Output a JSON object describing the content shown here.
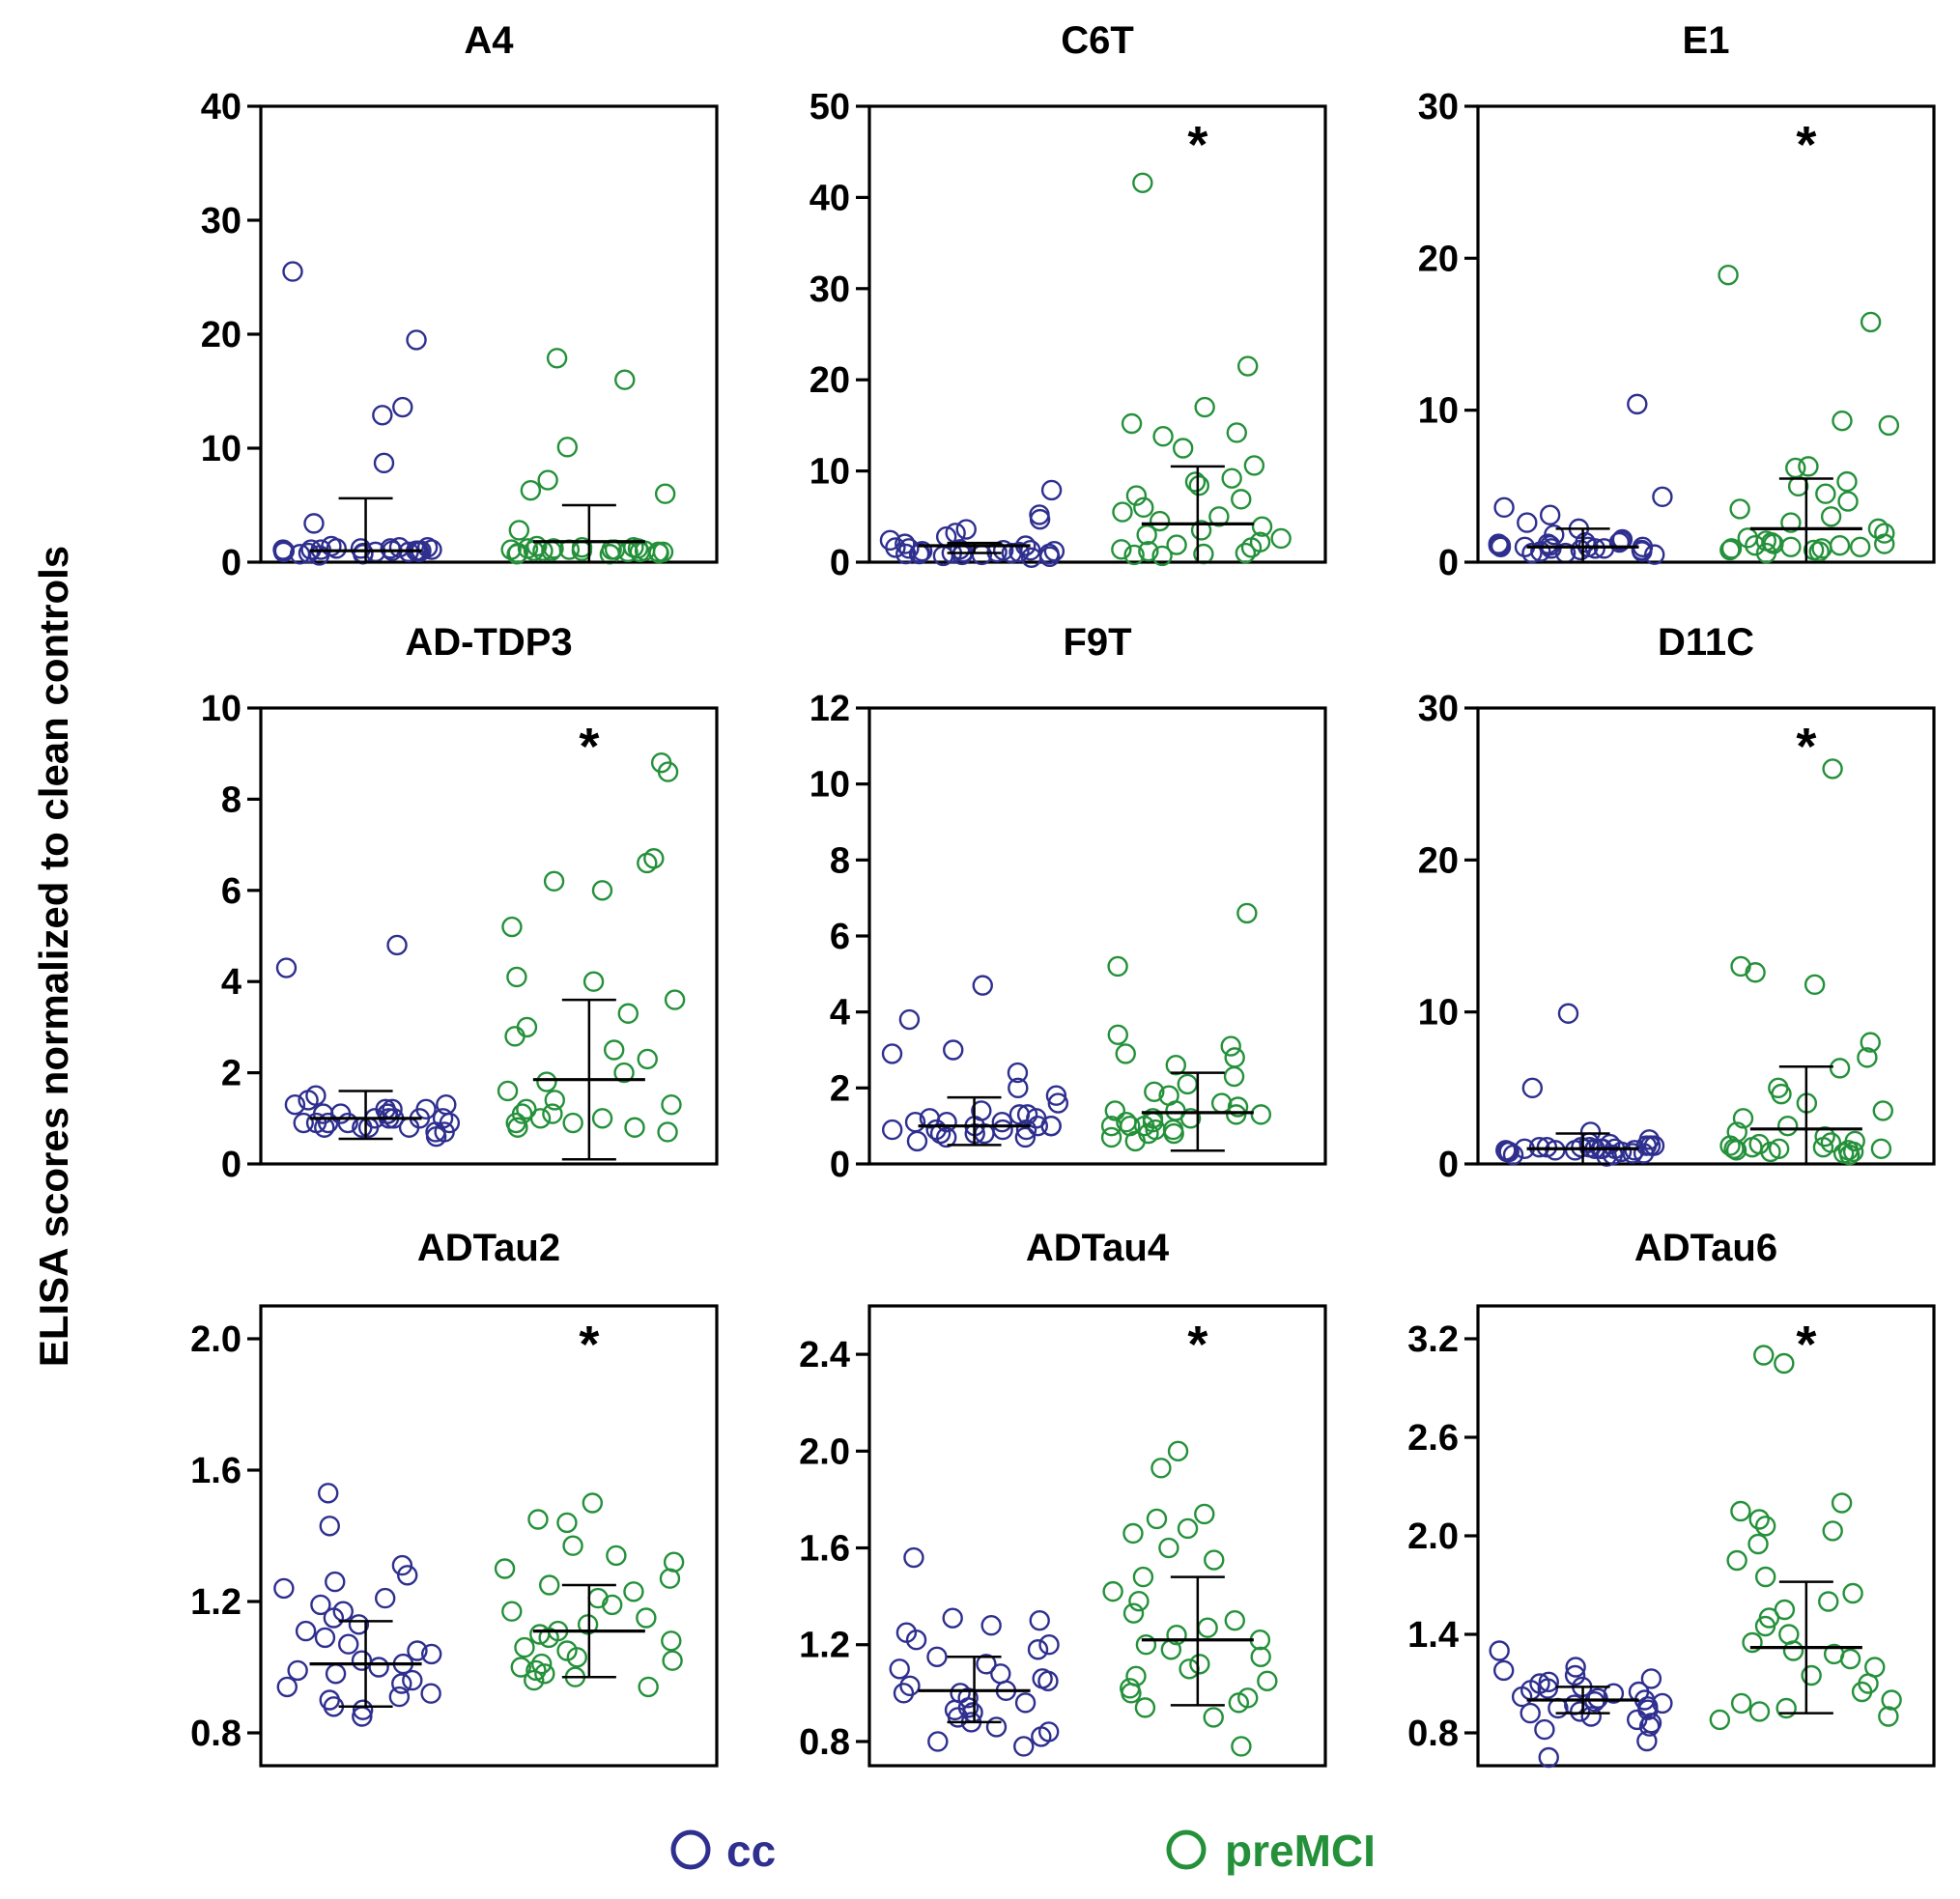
{
  "colors": {
    "cc": "#2e2f8f",
    "preMCI": "#24913a",
    "axis": "#000000"
  },
  "figure": {
    "ylabel": "ELISA scores normalized to  clean controls",
    "legend": [
      {
        "label": "cc",
        "color": "#2e2f8f"
      },
      {
        "label": "preMCI",
        "color": "#24913a"
      }
    ]
  },
  "chart_data": [
    {
      "type": "scatter",
      "title": "A4",
      "ylim": [
        0,
        40
      ],
      "yticks": [
        "0",
        "10",
        "20",
        "30",
        "40"
      ],
      "significance": "",
      "groups": [
        {
          "name": "cc",
          "values": [
            25.5,
            19.5,
            13.6,
            12.9,
            8.7,
            3.4,
            1.3,
            1.2,
            1.1,
            1.0,
            0.9,
            0.8,
            1.4,
            1.0,
            0.7,
            1.2,
            0.9,
            1.1,
            0.6,
            1.0,
            1.3,
            0.8,
            1.1,
            0.9,
            1.0,
            0.7,
            1.2,
            1.0,
            0.9,
            1.1
          ],
          "mean": 1.0,
          "sd_upper": 5.6,
          "sd_lower": 0
        },
        {
          "name": "preMCI",
          "values": [
            17.9,
            16.0,
            10.1,
            7.2,
            6.0,
            6.3,
            2.8,
            1.4,
            1.2,
            1.0,
            0.9,
            1.1,
            0.8,
            1.3,
            1.0,
            0.7,
            1.2,
            0.9,
            1.1,
            1.0,
            0.8,
            1.2,
            1.0,
            0.9,
            1.1,
            0.7,
            1.0,
            1.3,
            0.9,
            1.1
          ],
          "mean": 1.8,
          "sd_upper": 5.0,
          "sd_lower": 0
        }
      ]
    },
    {
      "type": "scatter",
      "title": "C6T",
      "ylim": [
        0,
        50
      ],
      "yticks": [
        "0",
        "10",
        "20",
        "30",
        "40",
        "50"
      ],
      "significance": "*",
      "groups": [
        {
          "name": "cc",
          "values": [
            7.9,
            5.2,
            4.7,
            3.6,
            3.2,
            2.8,
            2.4,
            2.0,
            1.8,
            1.6,
            1.4,
            1.3,
            1.2,
            1.1,
            1.0,
            0.9,
            0.8,
            0.7,
            1.5,
            1.0,
            0.6,
            1.2,
            0.9,
            1.1,
            0.5,
            1.0,
            1.3,
            0.8,
            1.1,
            0.9
          ],
          "mean": 1.8,
          "sd_upper": 2.1,
          "sd_lower": 1.0
        },
        {
          "name": "preMCI",
          "values": [
            41.6,
            21.5,
            17.0,
            15.2,
            14.2,
            13.8,
            12.5,
            10.6,
            9.2,
            8.8,
            8.4,
            7.3,
            6.9,
            6.0,
            5.5,
            5.0,
            4.5,
            3.9,
            3.5,
            3.0,
            2.6,
            2.2,
            1.9,
            1.6,
            1.4,
            1.2,
            1.0,
            0.9,
            0.8,
            0.7
          ],
          "mean": 4.2,
          "sd_upper": 10.5,
          "sd_lower": 0
        }
      ]
    },
    {
      "type": "scatter",
      "title": "E1",
      "ylim": [
        0,
        30
      ],
      "yticks": [
        "0",
        "10",
        "20",
        "30"
      ],
      "significance": "*",
      "groups": [
        {
          "name": "cc",
          "values": [
            10.4,
            4.3,
            3.6,
            3.1,
            2.6,
            2.2,
            1.8,
            1.5,
            1.3,
            1.2,
            1.1,
            1.0,
            0.9,
            0.8,
            0.7,
            1.4,
            1.0,
            0.6,
            1.2,
            0.9,
            1.1,
            0.5,
            1.0,
            1.3,
            0.8,
            1.1,
            0.9,
            0.6,
            1.0,
            0.7
          ],
          "mean": 1.0,
          "sd_upper": 2.2,
          "sd_lower": 0
        },
        {
          "name": "preMCI",
          "values": [
            18.9,
            15.8,
            9.3,
            9.0,
            6.3,
            6.2,
            5.3,
            5.0,
            4.5,
            4.0,
            3.5,
            3.0,
            2.6,
            2.2,
            1.9,
            1.6,
            1.4,
            1.2,
            1.0,
            0.9,
            0.8,
            0.7,
            1.3,
            1.1,
            0.9,
            1.0,
            0.6,
            1.2,
            0.8,
            1.1
          ],
          "mean": 2.2,
          "sd_upper": 5.5,
          "sd_lower": 0
        }
      ]
    },
    {
      "type": "scatter",
      "title": "AD-TDP3",
      "ylim": [
        0,
        10
      ],
      "yticks": [
        "0",
        "2",
        "4",
        "6",
        "8",
        "10"
      ],
      "significance": "*",
      "groups": [
        {
          "name": "cc",
          "values": [
            4.8,
            4.3,
            1.5,
            1.4,
            1.3,
            1.2,
            1.2,
            1.1,
            1.1,
            1.0,
            1.0,
            1.0,
            0.9,
            0.9,
            0.9,
            0.8,
            0.8,
            0.8,
            0.7,
            0.7,
            1.3,
            1.1,
            1.0,
            0.9,
            1.2,
            0.6,
            1.0,
            0.9,
            1.1,
            0.8
          ],
          "mean": 1.0,
          "sd_upper": 1.6,
          "sd_lower": 0.55
        },
        {
          "name": "preMCI",
          "values": [
            8.8,
            8.6,
            6.7,
            6.6,
            6.2,
            6.0,
            5.2,
            4.1,
            4.0,
            3.6,
            3.3,
            3.0,
            2.8,
            2.5,
            2.3,
            2.0,
            1.8,
            1.6,
            1.4,
            1.3,
            1.2,
            1.1,
            1.0,
            1.0,
            0.9,
            0.9,
            0.8,
            0.8,
            0.7,
            1.1
          ],
          "mean": 1.85,
          "sd_upper": 3.6,
          "sd_lower": 0.1
        }
      ]
    },
    {
      "type": "scatter",
      "title": "F9T",
      "ylim": [
        0,
        12
      ],
      "yticks": [
        "0",
        "2",
        "4",
        "6",
        "8",
        "10",
        "12"
      ],
      "significance": "",
      "groups": [
        {
          "name": "cc",
          "values": [
            4.7,
            3.8,
            3.0,
            2.9,
            2.4,
            2.0,
            1.8,
            1.6,
            1.4,
            1.3,
            1.2,
            1.1,
            1.0,
            1.0,
            0.9,
            0.9,
            0.8,
            0.8,
            0.7,
            0.7,
            0.6,
            1.1,
            1.0,
            0.9,
            1.2,
            1.0,
            0.8,
            1.3,
            0.9,
            1.1
          ],
          "mean": 1.0,
          "sd_upper": 1.75,
          "sd_lower": 0.5
        },
        {
          "name": "preMCI",
          "values": [
            6.6,
            5.2,
            3.4,
            3.1,
            2.9,
            2.8,
            2.6,
            2.3,
            2.1,
            1.9,
            1.8,
            1.6,
            1.5,
            1.4,
            1.3,
            1.2,
            1.1,
            1.0,
            1.0,
            0.9,
            0.8,
            0.7,
            0.6,
            1.2,
            1.1,
            1.0,
            0.9,
            1.3,
            0.8,
            1.4
          ],
          "mean": 1.35,
          "sd_upper": 2.4,
          "sd_lower": 0.35
        }
      ]
    },
    {
      "type": "scatter",
      "title": "D11C",
      "ylim": [
        0,
        30
      ],
      "yticks": [
        "0",
        "10",
        "20",
        "30"
      ],
      "significance": "*",
      "groups": [
        {
          "name": "cc",
          "values": [
            9.9,
            5.0,
            2.1,
            1.6,
            1.4,
            1.2,
            1.1,
            1.0,
            0.9,
            0.8,
            0.7,
            1.3,
            1.0,
            0.6,
            1.2,
            0.9,
            1.1,
            0.5,
            1.0,
            0.8,
            1.1,
            0.9,
            0.7,
            1.0,
            1.2,
            0.6,
            0.9,
            1.1,
            0.8,
            1.0
          ],
          "mean": 1.0,
          "sd_upper": 2.0,
          "sd_lower": 0
        },
        {
          "name": "preMCI",
          "values": [
            26.0,
            13.0,
            12.6,
            11.8,
            8.0,
            7.0,
            6.3,
            5.0,
            4.6,
            4.0,
            3.5,
            3.0,
            2.5,
            2.1,
            1.8,
            1.5,
            1.3,
            1.1,
            1.0,
            0.9,
            0.8,
            0.7,
            1.2,
            1.0,
            0.9,
            1.1,
            0.6,
            1.4,
            0.8,
            1.0
          ],
          "mean": 2.3,
          "sd_upper": 6.4,
          "sd_lower": 0
        }
      ]
    },
    {
      "type": "scatter",
      "title": "ADTau2",
      "ylim": [
        0.7,
        2.1
      ],
      "yticks": [
        "0.8",
        "1.2",
        "1.6",
        "2.0"
      ],
      "significance": "*",
      "groups": [
        {
          "name": "cc",
          "values": [
            1.53,
            1.43,
            1.31,
            1.28,
            1.26,
            1.24,
            1.21,
            1.19,
            1.17,
            1.15,
            1.13,
            1.11,
            1.09,
            1.07,
            1.05,
            1.04,
            1.02,
            1.01,
            1.0,
            0.99,
            0.98,
            0.96,
            0.95,
            0.94,
            0.92,
            0.91,
            0.9,
            0.88,
            0.87,
            0.85
          ],
          "mean": 1.01,
          "sd_upper": 1.14,
          "sd_lower": 0.88
        },
        {
          "name": "preMCI",
          "values": [
            1.5,
            1.45,
            1.44,
            1.37,
            1.34,
            1.32,
            1.3,
            1.27,
            1.25,
            1.23,
            1.21,
            1.19,
            1.17,
            1.15,
            1.13,
            1.11,
            1.1,
            1.09,
            1.08,
            1.06,
            1.05,
            1.03,
            1.02,
            1.01,
            1.0,
            0.99,
            0.98,
            0.97,
            0.96,
            0.94
          ],
          "mean": 1.11,
          "sd_upper": 1.25,
          "sd_lower": 0.97
        }
      ]
    },
    {
      "type": "scatter",
      "title": "ADTau4",
      "ylim": [
        0.7,
        2.6
      ],
      "yticks": [
        "0.8",
        "1.2",
        "1.6",
        "2.0",
        "2.4"
      ],
      "significance": "*",
      "groups": [
        {
          "name": "cc",
          "values": [
            1.56,
            1.31,
            1.3,
            1.28,
            1.25,
            1.22,
            1.2,
            1.18,
            1.15,
            1.12,
            1.1,
            1.08,
            1.05,
            1.03,
            1.01,
            1.0,
            0.98,
            0.96,
            0.94,
            0.92,
            0.9,
            0.88,
            0.86,
            0.84,
            0.82,
            0.8,
            0.78,
            1.0,
            1.06,
            0.93
          ],
          "mean": 1.01,
          "sd_upper": 1.15,
          "sd_lower": 0.88
        },
        {
          "name": "preMCI",
          "values": [
            2.0,
            1.93,
            1.74,
            1.72,
            1.68,
            1.66,
            1.6,
            1.55,
            1.48,
            1.42,
            1.38,
            1.33,
            1.3,
            1.27,
            1.24,
            1.22,
            1.2,
            1.18,
            1.15,
            1.12,
            1.1,
            1.07,
            1.05,
            1.02,
            1.0,
            0.98,
            0.96,
            0.94,
            0.9,
            0.78
          ],
          "mean": 1.22,
          "sd_upper": 1.48,
          "sd_lower": 0.95
        }
      ]
    },
    {
      "type": "scatter",
      "title": "ADTau6",
      "ylim": [
        0.6,
        3.4
      ],
      "yticks": [
        "0.8",
        "1.4",
        "2.0",
        "2.6",
        "3.2"
      ],
      "significance": "*",
      "groups": [
        {
          "name": "cc",
          "values": [
            1.3,
            1.2,
            1.18,
            1.15,
            1.13,
            1.11,
            1.1,
            1.08,
            1.06,
            1.05,
            1.04,
            1.02,
            1.01,
            1.0,
            0.99,
            0.98,
            0.97,
            0.96,
            0.95,
            0.94,
            0.93,
            0.92,
            0.9,
            0.88,
            0.86,
            0.84,
            0.82,
            0.75,
            0.65,
            1.07
          ],
          "mean": 1.0,
          "sd_upper": 1.08,
          "sd_lower": 0.92
        },
        {
          "name": "preMCI",
          "values": [
            3.1,
            3.05,
            2.2,
            2.15,
            2.1,
            2.06,
            2.03,
            1.95,
            1.85,
            1.75,
            1.65,
            1.6,
            1.55,
            1.5,
            1.45,
            1.4,
            1.35,
            1.3,
            1.25,
            1.2,
            1.15,
            1.1,
            1.05,
            1.0,
            0.98,
            0.95,
            0.93,
            0.9,
            0.88,
            1.28
          ],
          "mean": 1.32,
          "sd_upper": 1.72,
          "sd_lower": 0.92
        }
      ]
    }
  ]
}
